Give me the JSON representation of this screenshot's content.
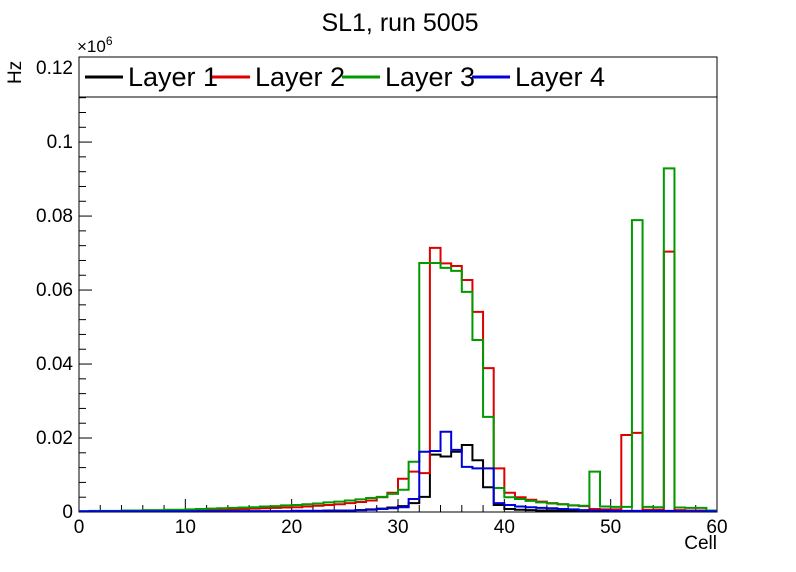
{
  "title": "SL1, run 5005",
  "chart_data": {
    "type": "step-histogram",
    "title": "SL1, run 5005",
    "xlabel": "Cell",
    "ylabel": "Hz",
    "y_multiplier": "×10",
    "y_multiplier_exp": "6",
    "xlim": [
      0,
      60
    ],
    "ylim": [
      0,
      0.123
    ],
    "bin_width": 1,
    "bin_start": 0,
    "x_major_step": 10,
    "x_minor_step": 2,
    "y_major_step": 0.02,
    "y_minor_step": 0.004,
    "x_tick_labels": [
      "0",
      "10",
      "20",
      "30",
      "40",
      "50",
      "60"
    ],
    "y_tick_labels": [
      "0",
      "0.02",
      "0.04",
      "0.06",
      "0.08",
      "0.1",
      "0.12"
    ],
    "grid": false,
    "legend_position": "top-inside-horizontal",
    "series": [
      {
        "name": "Layer 1",
        "color": "#000000",
        "values": [
          0.0001,
          0.0001,
          0.0001,
          0.0001,
          0.0001,
          0.0001,
          0.0001,
          0.0001,
          0.0001,
          0.0001,
          0.0002,
          0.0002,
          0.0002,
          0.0002,
          0.0002,
          0.0002,
          0.0002,
          0.0002,
          0.0002,
          0.0002,
          0.0003,
          0.0003,
          0.0003,
          0.0003,
          0.0003,
          0.0004,
          0.0005,
          0.0007,
          0.0009,
          0.0012,
          0.0016,
          0.0024,
          0.0041,
          0.0155,
          0.015,
          0.0163,
          0.0181,
          0.014,
          0.0067,
          0.0019,
          0.0008,
          0.0006,
          0.0005,
          0.0004,
          0.0004,
          0.0003,
          0.0003,
          0.0003,
          0.0002,
          0.0002,
          0.0002,
          0.0002,
          0.0002,
          0.0002,
          0.0001,
          0.0001,
          0.0001,
          0.0001,
          0.0001,
          0.0001
        ]
      },
      {
        "name": "Layer 2",
        "color": "#dd0000",
        "values": [
          0.0001,
          0.0001,
          0.0002,
          0.0002,
          0.0002,
          0.0002,
          0.0003,
          0.0003,
          0.0003,
          0.0004,
          0.0004,
          0.0005,
          0.0006,
          0.0006,
          0.0007,
          0.0008,
          0.0009,
          0.001,
          0.0011,
          0.0012,
          0.0013,
          0.0015,
          0.0017,
          0.0019,
          0.0021,
          0.0024,
          0.0027,
          0.0031,
          0.004,
          0.0052,
          0.009,
          0.0109,
          0.0105,
          0.0714,
          0.0672,
          0.0665,
          0.0627,
          0.0541,
          0.0389,
          0.0118,
          0.0052,
          0.004,
          0.0033,
          0.0028,
          0.0024,
          0.0021,
          0.0018,
          0.0016,
          0.0008,
          0.0007,
          0.0007,
          0.0208,
          0.0214,
          0.0006,
          0.0006,
          0.0704,
          0.0005,
          0.0004,
          0.0004,
          0.0003
        ]
      },
      {
        "name": "Layer 3",
        "color": "#009900",
        "values": [
          0.0002,
          0.0003,
          0.0003,
          0.0003,
          0.0004,
          0.0004,
          0.0005,
          0.0005,
          0.0006,
          0.0006,
          0.0007,
          0.0008,
          0.0009,
          0.001,
          0.0011,
          0.0012,
          0.0013,
          0.0015,
          0.0016,
          0.0018,
          0.0019,
          0.0021,
          0.0023,
          0.0026,
          0.0028,
          0.0031,
          0.0034,
          0.0038,
          0.0041,
          0.0049,
          0.006,
          0.0136,
          0.0673,
          0.0673,
          0.066,
          0.0652,
          0.0595,
          0.0465,
          0.0257,
          0.0065,
          0.004,
          0.0035,
          0.003,
          0.0026,
          0.0023,
          0.0021,
          0.0018,
          0.0017,
          0.0109,
          0.0015,
          0.0014,
          0.0014,
          0.0789,
          0.0014,
          0.0013,
          0.0929,
          0.0012,
          0.0011,
          0.0011,
          0.0004
        ]
      },
      {
        "name": "Layer 4",
        "color": "#0000dd",
        "values": [
          0.0002,
          0.0002,
          0.0002,
          0.0002,
          0.0002,
          0.0002,
          0.0002,
          0.0002,
          0.0002,
          0.0002,
          0.0002,
          0.0002,
          0.0002,
          0.0002,
          0.0002,
          0.0002,
          0.0002,
          0.0002,
          0.0002,
          0.0002,
          0.0003,
          0.0003,
          0.0003,
          0.0004,
          0.0004,
          0.0004,
          0.0005,
          0.0006,
          0.0008,
          0.001,
          0.0013,
          0.0035,
          0.0163,
          0.0165,
          0.0217,
          0.0168,
          0.0122,
          0.0118,
          0.0118,
          0.0024,
          0.0019,
          0.0015,
          0.0013,
          0.0011,
          0.001,
          0.0008,
          0.0007,
          0.0005,
          0.0004,
          0.0004,
          0.0003,
          0.0003,
          0.0003,
          0.0003,
          0.0003,
          0.0003,
          0.0002,
          0.0002,
          0.0002,
          0.0002
        ]
      }
    ]
  }
}
